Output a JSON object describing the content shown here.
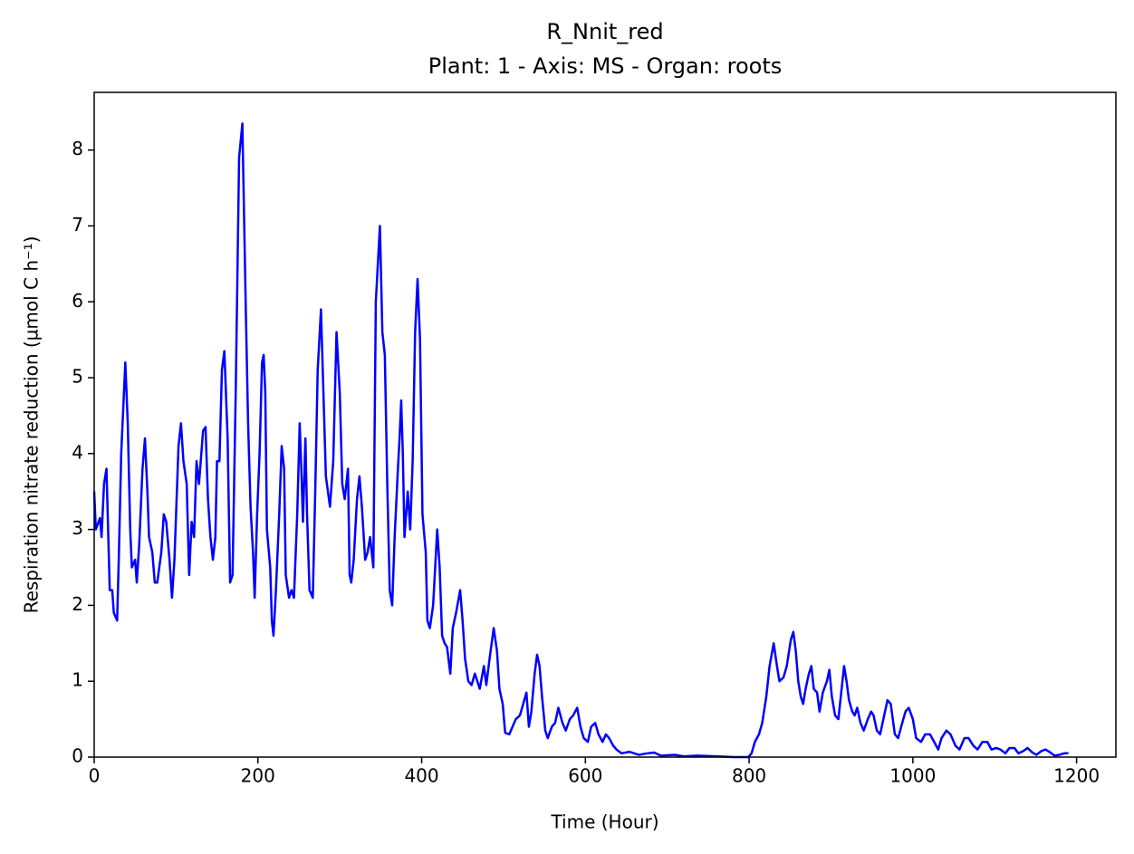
{
  "chart_data": {
    "type": "line",
    "title": "R_Nnit_red",
    "subtitle": "Plant: 1 - Axis: MS - Organ: roots",
    "x_label": "Time (Hour)",
    "y_label": "Respiration nitrate reduction (µmol C h⁻¹)",
    "color": "#0000ff",
    "xlim": [
      0,
      1248
    ],
    "ylim": [
      0,
      8.76
    ],
    "xticks": [
      0,
      200,
      400,
      600,
      800,
      1000,
      1200
    ],
    "yticks": [
      0,
      1,
      2,
      3,
      4,
      5,
      6,
      7,
      8
    ],
    "grid": false,
    "x": [
      0,
      2,
      7,
      9,
      12,
      15,
      19,
      22,
      24,
      28,
      30,
      33,
      38,
      41,
      44,
      46,
      50,
      52,
      55,
      59,
      62,
      65,
      67,
      71,
      74,
      77,
      82,
      85,
      88,
      92,
      95,
      98,
      103,
      106,
      109,
      113,
      116,
      119,
      122,
      125,
      128,
      133,
      136,
      139,
      142,
      145,
      148,
      150,
      153,
      156,
      159,
      163,
      166,
      169,
      173,
      177,
      181,
      185,
      188,
      191,
      194,
      196,
      199,
      202,
      205,
      207,
      209,
      211,
      215,
      217,
      219,
      222,
      226,
      229,
      232,
      234,
      238,
      241,
      244,
      248,
      251,
      253,
      255,
      258,
      260,
      263,
      267,
      270,
      273,
      277,
      280,
      283,
      288,
      292,
      296,
      300,
      303,
      306,
      310,
      312,
      314,
      317,
      321,
      324,
      327,
      331,
      334,
      337,
      341,
      344,
      347,
      349,
      352,
      355,
      358,
      361,
      364,
      367,
      371,
      373,
      375,
      377,
      379,
      383,
      386,
      389,
      392,
      395,
      398,
      401,
      405,
      407,
      410,
      414,
      417,
      419,
      422,
      425,
      428,
      431,
      435,
      438,
      442,
      447,
      450,
      453,
      457,
      461,
      465,
      468,
      471,
      476,
      479,
      483,
      488,
      492,
      495,
      499,
      502,
      507,
      511,
      515,
      520,
      524,
      528,
      531,
      534,
      538,
      541,
      544,
      547,
      551,
      554,
      559,
      563,
      567,
      572,
      576,
      581,
      585,
      590,
      594,
      598,
      603,
      607,
      612,
      616,
      621,
      625,
      629,
      634,
      638,
      644,
      654,
      665,
      676,
      684,
      692,
      709,
      720,
      737,
      759,
      781,
      799,
      803,
      807,
      812,
      816,
      821,
      825,
      830,
      834,
      837,
      842,
      846,
      851,
      854,
      857,
      860,
      863,
      866,
      869,
      873,
      876,
      879,
      883,
      886,
      890,
      895,
      898,
      901,
      905,
      909,
      912,
      916,
      919,
      922,
      926,
      929,
      932,
      936,
      940,
      945,
      949,
      952,
      956,
      960,
      964,
      969,
      973,
      978,
      982,
      987,
      991,
      995,
      1000,
      1004,
      1010,
      1015,
      1021,
      1026,
      1031,
      1035,
      1041,
      1046,
      1052,
      1057,
      1063,
      1068,
      1074,
      1079,
      1085,
      1091,
      1096,
      1102,
      1107,
      1113,
      1118,
      1124,
      1129,
      1135,
      1140,
      1146,
      1151,
      1157,
      1162,
      1168,
      1173,
      1179,
      1185,
      1190
    ],
    "values": [
      3.5,
      3.0,
      3.15,
      2.9,
      3.6,
      3.8,
      2.2,
      2.2,
      1.9,
      1.8,
      2.6,
      4.0,
      5.2,
      4.4,
      3.0,
      2.5,
      2.6,
      2.3,
      2.8,
      3.8,
      4.2,
      3.5,
      2.9,
      2.7,
      2.3,
      2.3,
      2.7,
      3.2,
      3.1,
      2.6,
      2.1,
      2.6,
      4.1,
      4.4,
      3.9,
      3.6,
      2.4,
      3.1,
      2.9,
      3.9,
      3.6,
      4.3,
      4.35,
      3.4,
      2.9,
      2.6,
      2.9,
      3.9,
      3.9,
      5.1,
      5.35,
      4.2,
      2.3,
      2.4,
      4.9,
      7.9,
      8.35,
      6.0,
      4.4,
      3.3,
      2.7,
      2.1,
      3.2,
      4.0,
      5.2,
      5.3,
      4.8,
      3.0,
      2.5,
      1.8,
      1.6,
      2.2,
      3.2,
      4.1,
      3.8,
      2.4,
      2.1,
      2.2,
      2.1,
      3.2,
      4.4,
      3.8,
      3.1,
      4.2,
      3.2,
      2.2,
      2.1,
      3.5,
      5.1,
      5.9,
      4.8,
      3.7,
      3.3,
      3.9,
      5.6,
      4.8,
      3.6,
      3.4,
      3.8,
      2.4,
      2.3,
      2.6,
      3.4,
      3.7,
      3.3,
      2.6,
      2.7,
      2.9,
      2.5,
      6.0,
      6.6,
      7.0,
      5.6,
      5.3,
      3.6,
      2.2,
      2.0,
      2.9,
      3.8,
      4.2,
      4.7,
      4.0,
      2.9,
      3.5,
      3.0,
      3.9,
      5.6,
      6.3,
      5.5,
      3.2,
      2.7,
      1.8,
      1.7,
      2.0,
      2.6,
      3.0,
      2.5,
      1.6,
      1.5,
      1.45,
      1.1,
      1.7,
      1.9,
      2.2,
      1.8,
      1.3,
      1.0,
      0.95,
      1.1,
      1.0,
      0.9,
      1.2,
      0.95,
      1.3,
      1.7,
      1.4,
      0.9,
      0.7,
      0.32,
      0.3,
      0.4,
      0.5,
      0.55,
      0.7,
      0.85,
      0.4,
      0.6,
      1.1,
      1.35,
      1.2,
      0.8,
      0.35,
      0.25,
      0.4,
      0.45,
      0.65,
      0.45,
      0.35,
      0.5,
      0.55,
      0.65,
      0.4,
      0.25,
      0.2,
      0.4,
      0.45,
      0.3,
      0.2,
      0.3,
      0.25,
      0.15,
      0.1,
      0.05,
      0.07,
      0.03,
      0.05,
      0.06,
      0.02,
      0.03,
      0.01,
      0.02,
      0.01,
      0,
      0,
      0.05,
      0.2,
      0.3,
      0.45,
      0.8,
      1.2,
      1.5,
      1.2,
      1.0,
      1.05,
      1.2,
      1.55,
      1.65,
      1.4,
      1.0,
      0.8,
      0.7,
      0.9,
      1.1,
      1.2,
      0.9,
      0.85,
      0.6,
      0.85,
      1.0,
      1.15,
      0.8,
      0.55,
      0.5,
      0.8,
      1.2,
      1.0,
      0.75,
      0.6,
      0.55,
      0.65,
      0.45,
      0.35,
      0.5,
      0.6,
      0.55,
      0.35,
      0.3,
      0.5,
      0.75,
      0.7,
      0.3,
      0.25,
      0.45,
      0.6,
      0.65,
      0.5,
      0.25,
      0.2,
      0.3,
      0.3,
      0.2,
      0.1,
      0.25,
      0.35,
      0.3,
      0.15,
      0.1,
      0.25,
      0.25,
      0.15,
      0.1,
      0.2,
      0.2,
      0.1,
      0.12,
      0.1,
      0.05,
      0.12,
      0.12,
      0.05,
      0.08,
      0.12,
      0.06,
      0.03,
      0.08,
      0.1,
      0.06,
      0.02,
      0.03,
      0.05,
      0.05
    ]
  }
}
